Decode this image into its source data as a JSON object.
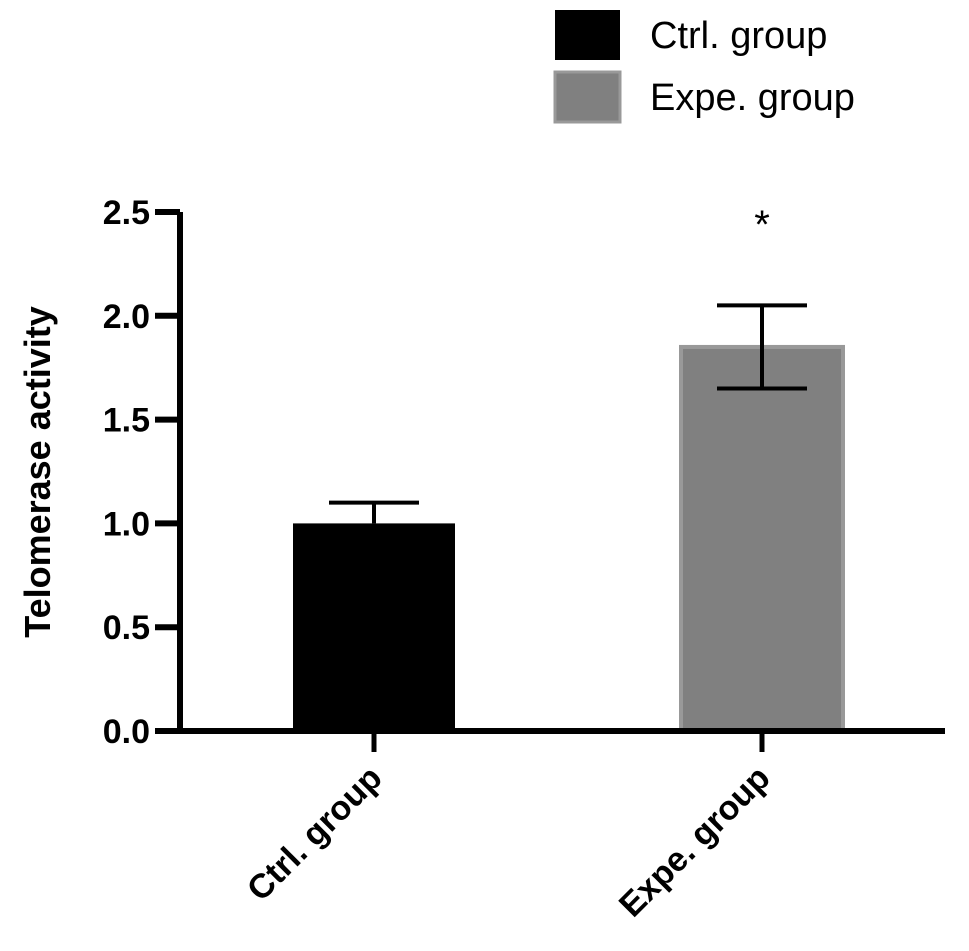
{
  "chart_data": {
    "type": "bar",
    "categories": [
      "Ctrl. group",
      "Expe. group"
    ],
    "values": [
      1.0,
      1.85
    ],
    "error": [
      0.1,
      0.2
    ],
    "colors": [
      "#000000",
      "#808080"
    ],
    "ylabel": "Telomerase activity",
    "ylim": [
      0,
      2.5
    ],
    "yticks": [
      "0.0",
      "0.5",
      "1.0",
      "1.5",
      "2.0",
      "2.5"
    ],
    "annotations": [
      {
        "category": "Expe. group",
        "text": "*"
      }
    ],
    "legend": {
      "position": "top-right",
      "entries": [
        {
          "label": "Ctrl. group",
          "color": "#000000"
        },
        {
          "label": "Expe. group",
          "color": "#808080"
        }
      ]
    },
    "grid": false
  }
}
